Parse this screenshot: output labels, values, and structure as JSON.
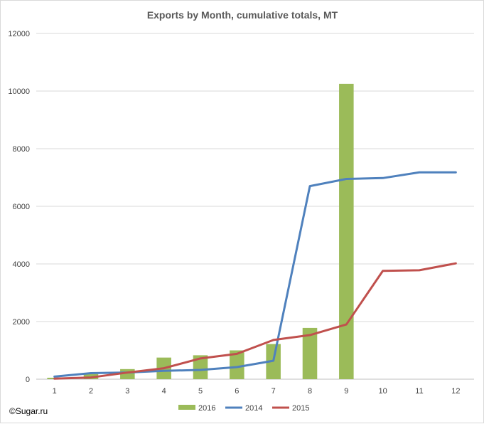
{
  "copyright": "©Sugar.ru",
  "chart_data": {
    "type": "bar+line",
    "title": "Exports by Month, cumulative totals, MT",
    "x": [
      1,
      2,
      3,
      4,
      5,
      6,
      7,
      8,
      9,
      10,
      11,
      12
    ],
    "ylim": [
      0,
      12000
    ],
    "yticks": [
      0,
      2000,
      4000,
      6000,
      8000,
      10000,
      12000
    ],
    "grid": true,
    "legend_position": "bottom",
    "series": [
      {
        "name": "2016",
        "kind": "bar",
        "color": "#9bbb59",
        "values": [
          50,
          180,
          350,
          750,
          830,
          1000,
          1220,
          1780,
          10250,
          null,
          null,
          null
        ]
      },
      {
        "name": "2014",
        "kind": "line",
        "color": "#4f81bd",
        "values": [
          90,
          210,
          230,
          290,
          320,
          420,
          640,
          6700,
          6950,
          6980,
          7180,
          7180
        ]
      },
      {
        "name": "2015",
        "kind": "line",
        "color": "#c0504d",
        "values": [
          20,
          60,
          230,
          380,
          720,
          880,
          1360,
          1530,
          1900,
          3760,
          3780,
          4020
        ]
      }
    ]
  }
}
